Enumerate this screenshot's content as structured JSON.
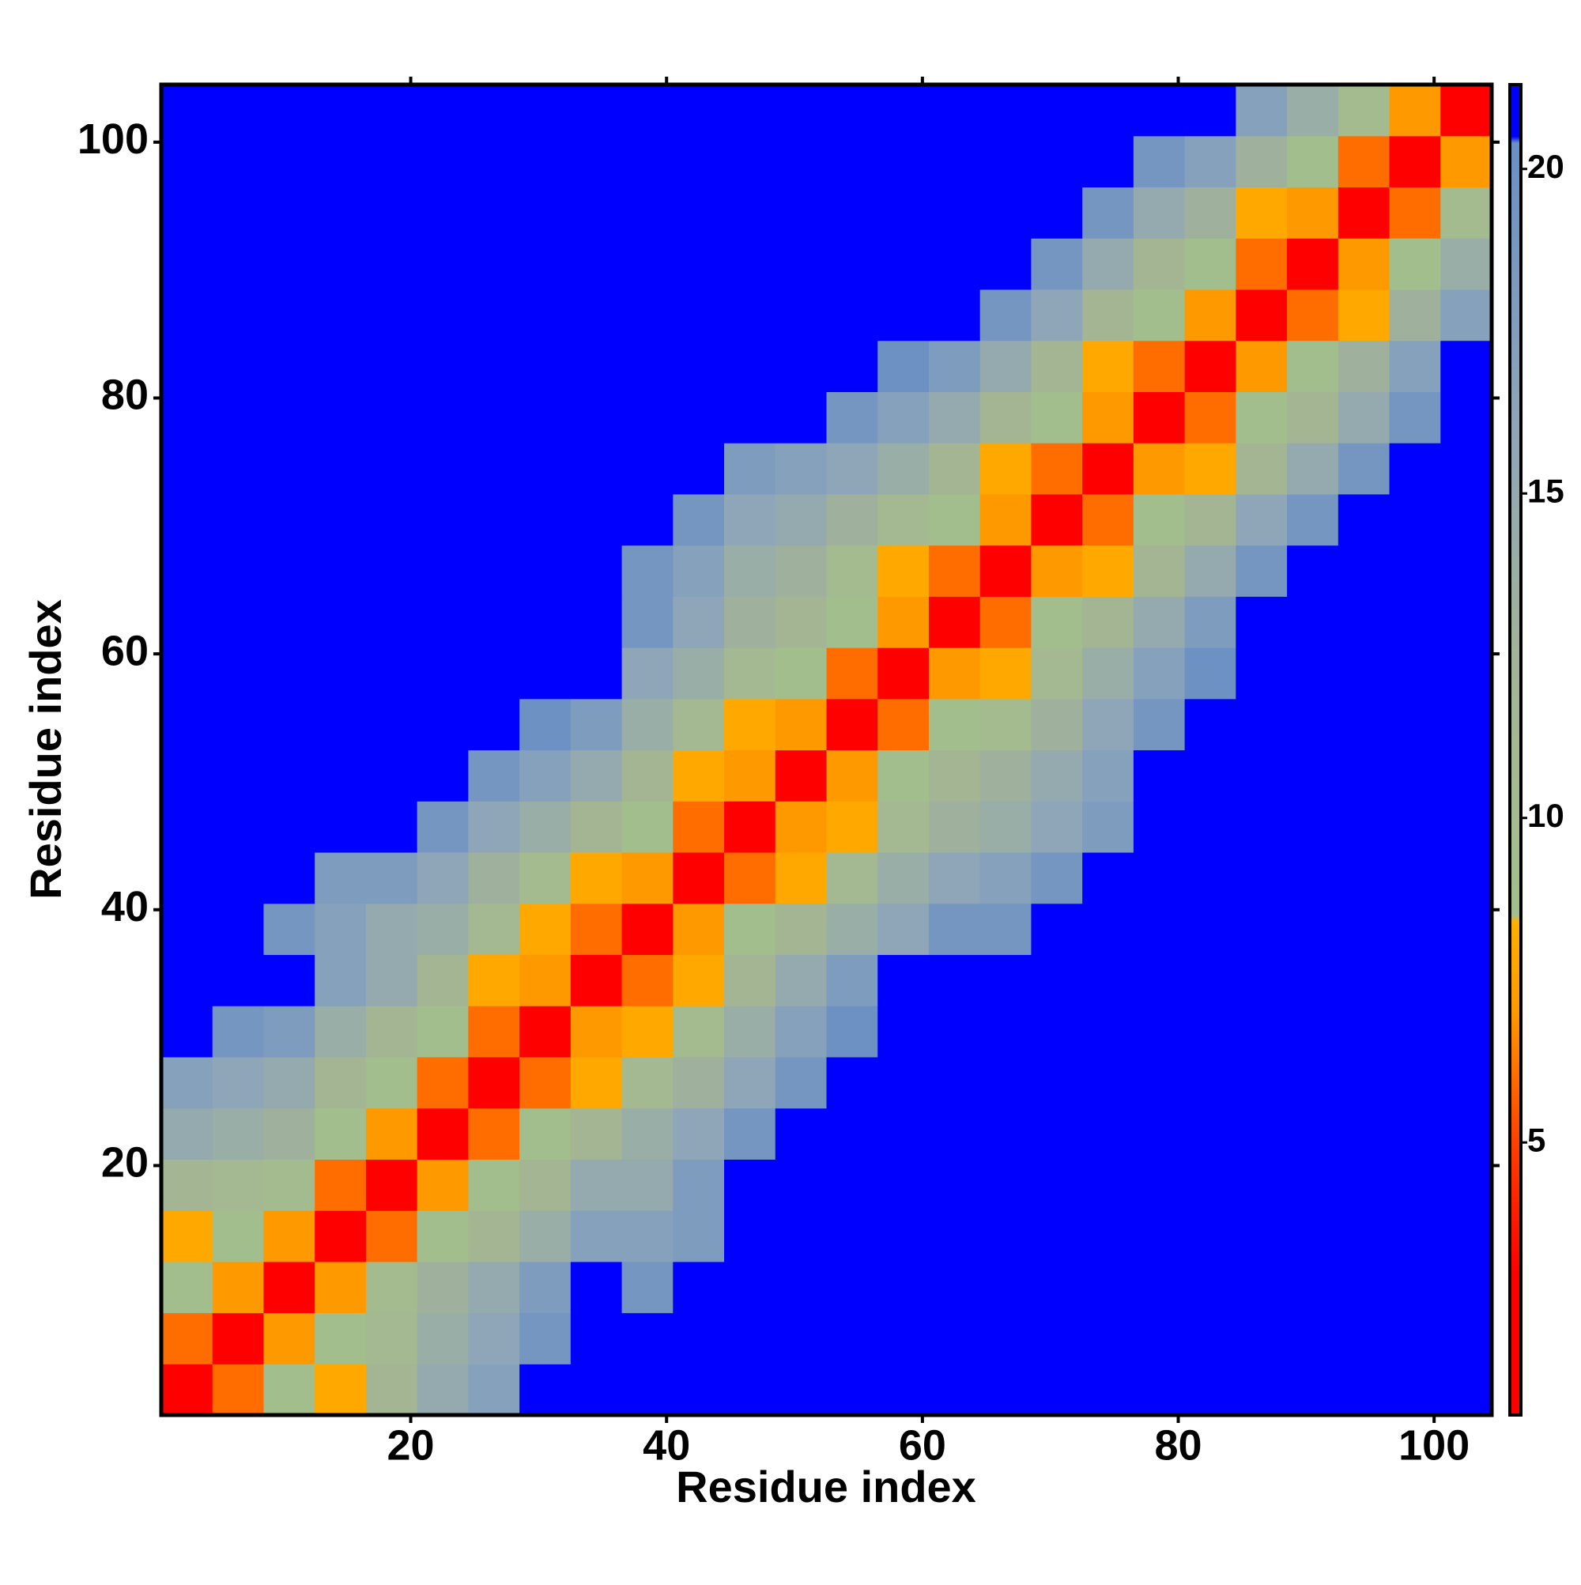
{
  "chart_data": {
    "type": "heatmap",
    "x_label": "Residue index",
    "y_label": "Residue index",
    "x": [
      2.5,
      6.5,
      10.5,
      14.5,
      18.5,
      22.5,
      26.5,
      30.5,
      34.5,
      38.5,
      42.5,
      46.5,
      50.5,
      54.5,
      58.5,
      62.5,
      66.5,
      70.5,
      74.5,
      78.5,
      82.5,
      86.5,
      90.5,
      94.5,
      98.5,
      102.5
    ],
    "y": [
      2.5,
      6.5,
      10.5,
      14.5,
      18.5,
      22.5,
      26.5,
      30.5,
      34.5,
      38.5,
      42.5,
      46.5,
      50.5,
      54.5,
      58.5,
      62.5,
      66.5,
      70.5,
      74.5,
      78.5,
      82.5,
      86.5,
      90.5,
      94.5,
      98.5,
      102.5
    ],
    "z": [
      [
        2,
        6,
        9,
        8,
        12,
        15,
        17,
        21,
        21,
        21,
        21,
        21,
        21,
        21,
        21,
        21,
        21,
        21,
        21,
        21,
        21,
        21,
        21,
        21,
        21,
        21
      ],
      [
        6,
        2,
        7,
        9,
        11,
        14,
        16,
        19,
        21,
        21,
        21,
        21,
        21,
        21,
        21,
        21,
        21,
        21,
        21,
        21,
        21,
        21,
        21,
        21,
        21,
        21
      ],
      [
        9,
        7,
        2,
        7,
        10,
        13,
        15,
        18,
        21,
        19,
        21,
        21,
        21,
        21,
        21,
        21,
        21,
        21,
        21,
        21,
        21,
        21,
        21,
        21,
        21,
        21
      ],
      [
        8,
        9,
        7,
        2,
        6,
        9,
        12,
        14,
        17,
        17,
        18,
        21,
        21,
        21,
        21,
        21,
        21,
        21,
        21,
        21,
        21,
        21,
        21,
        21,
        21,
        21
      ],
      [
        12,
        11,
        10,
        6,
        2,
        7,
        9,
        12,
        15,
        15,
        18,
        21,
        21,
        21,
        21,
        21,
        21,
        21,
        21,
        21,
        21,
        21,
        21,
        21,
        21,
        21
      ],
      [
        15,
        14,
        13,
        9,
        7,
        2,
        6,
        9,
        12,
        14,
        16,
        19,
        21,
        21,
        21,
        21,
        21,
        21,
        21,
        21,
        21,
        21,
        21,
        21,
        21,
        21
      ],
      [
        17,
        16,
        15,
        12,
        9,
        6,
        2,
        6,
        8,
        11,
        13,
        16,
        19,
        21,
        21,
        21,
        21,
        21,
        21,
        21,
        21,
        21,
        21,
        21,
        21,
        21
      ],
      [
        21,
        19,
        18,
        14,
        12,
        9,
        6,
        2,
        7,
        8,
        10,
        14,
        17,
        20,
        21,
        21,
        21,
        21,
        21,
        21,
        21,
        21,
        21,
        21,
        21,
        21
      ],
      [
        21,
        21,
        21,
        17,
        15,
        12,
        8,
        7,
        2,
        6,
        8,
        12,
        15,
        18,
        21,
        21,
        21,
        21,
        21,
        21,
        21,
        21,
        21,
        21,
        21,
        21
      ],
      [
        21,
        21,
        19,
        17,
        15,
        14,
        11,
        8,
        6,
        2,
        7,
        9,
        12,
        14,
        16,
        19,
        19,
        21,
        21,
        21,
        21,
        21,
        21,
        21,
        21,
        21
      ],
      [
        21,
        21,
        21,
        18,
        18,
        16,
        13,
        10,
        8,
        7,
        2,
        6,
        8,
        11,
        14,
        16,
        17,
        19,
        21,
        21,
        21,
        21,
        21,
        21,
        21,
        21
      ],
      [
        21,
        21,
        21,
        21,
        21,
        19,
        16,
        14,
        12,
        9,
        6,
        2,
        7,
        8,
        11,
        13,
        14,
        16,
        18,
        21,
        21,
        21,
        21,
        21,
        21,
        21
      ],
      [
        21,
        21,
        21,
        21,
        21,
        21,
        19,
        17,
        15,
        12,
        8,
        7,
        2,
        7,
        9,
        12,
        13,
        15,
        17,
        21,
        21,
        21,
        21,
        21,
        21,
        21
      ],
      [
        21,
        21,
        21,
        21,
        21,
        21,
        21,
        20,
        18,
        14,
        11,
        8,
        7,
        2,
        6,
        9,
        10,
        13,
        16,
        19,
        21,
        21,
        21,
        21,
        21,
        21
      ],
      [
        21,
        21,
        21,
        21,
        21,
        21,
        21,
        21,
        21,
        16,
        14,
        11,
        9,
        6,
        2,
        7,
        8,
        11,
        14,
        17,
        20,
        21,
        21,
        21,
        21,
        21
      ],
      [
        21,
        21,
        21,
        21,
        21,
        21,
        21,
        21,
        21,
        19,
        16,
        13,
        12,
        9,
        7,
        2,
        6,
        9,
        12,
        15,
        18,
        21,
        21,
        21,
        21,
        21
      ],
      [
        21,
        21,
        21,
        21,
        21,
        21,
        21,
        21,
        21,
        19,
        17,
        14,
        13,
        10,
        8,
        6,
        2,
        7,
        8,
        12,
        15,
        19,
        21,
        21,
        21,
        21
      ],
      [
        21,
        21,
        21,
        21,
        21,
        21,
        21,
        21,
        21,
        21,
        19,
        16,
        15,
        13,
        11,
        9,
        7,
        2,
        6,
        9,
        12,
        16,
        19,
        21,
        21,
        21
      ],
      [
        21,
        21,
        21,
        21,
        21,
        21,
        21,
        21,
        21,
        21,
        21,
        18,
        17,
        16,
        14,
        12,
        8,
        6,
        2,
        7,
        8,
        12,
        15,
        19,
        21,
        21
      ],
      [
        21,
        21,
        21,
        21,
        21,
        21,
        21,
        21,
        21,
        21,
        21,
        21,
        21,
        19,
        17,
        15,
        12,
        9,
        7,
        2,
        6,
        9,
        12,
        15,
        19,
        21
      ],
      [
        21,
        21,
        21,
        21,
        21,
        21,
        21,
        21,
        21,
        21,
        21,
        21,
        21,
        21,
        20,
        18,
        15,
        12,
        8,
        6,
        2,
        7,
        9,
        13,
        17,
        21
      ],
      [
        21,
        21,
        21,
        21,
        21,
        21,
        21,
        21,
        21,
        21,
        21,
        21,
        21,
        21,
        21,
        21,
        19,
        16,
        12,
        9,
        7,
        2,
        6,
        8,
        13,
        17
      ],
      [
        21,
        21,
        21,
        21,
        21,
        21,
        21,
        21,
        21,
        21,
        21,
        21,
        21,
        21,
        21,
        21,
        21,
        19,
        15,
        12,
        9,
        6,
        2,
        7,
        9,
        14
      ],
      [
        21,
        21,
        21,
        21,
        21,
        21,
        21,
        21,
        21,
        21,
        21,
        21,
        21,
        21,
        21,
        21,
        21,
        21,
        19,
        15,
        13,
        8,
        7,
        2,
        6,
        10
      ],
      [
        21,
        21,
        21,
        21,
        21,
        21,
        21,
        21,
        21,
        21,
        21,
        21,
        21,
        21,
        21,
        21,
        21,
        21,
        21,
        19,
        17,
        13,
        9,
        6,
        2,
        7
      ],
      [
        21,
        21,
        21,
        21,
        21,
        21,
        21,
        21,
        21,
        21,
        21,
        21,
        21,
        21,
        21,
        21,
        21,
        21,
        21,
        21,
        21,
        17,
        14,
        10,
        7,
        2
      ]
    ],
    "xlim": [
      0.5,
      104.5
    ],
    "ylim": [
      0.5,
      104.5
    ],
    "xticks": [
      20,
      40,
      60,
      80,
      100
    ],
    "yticks": [
      20,
      40,
      60,
      80,
      100
    ],
    "clim": [
      0.8,
      21.3
    ],
    "colorbar_ticks": [
      5,
      10,
      15,
      20
    ],
    "colorscale": [
      [
        0.8,
        "#ff0000"
      ],
      [
        3,
        "#ff0000"
      ],
      [
        5,
        "#ff4000"
      ],
      [
        7,
        "#ff9900"
      ],
      [
        8.4,
        "#ffb000"
      ],
      [
        8.5,
        "#a3c08c"
      ],
      [
        12,
        "#a4b594"
      ],
      [
        16,
        "#8ea6b8"
      ],
      [
        20.4,
        "#6a8fc4"
      ],
      [
        20.5,
        "#0000ff"
      ],
      [
        21.3,
        "#0000ff"
      ]
    ]
  }
}
